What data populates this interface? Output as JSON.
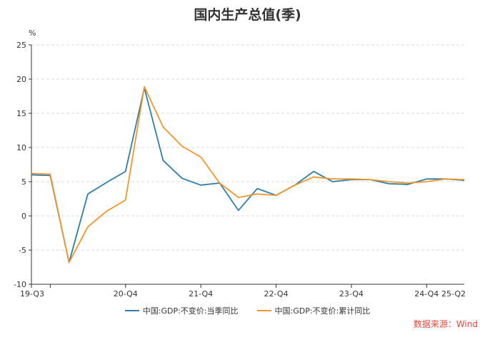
{
  "chart_data": {
    "type": "line",
    "title": "国内生产总值(季)",
    "y_unit": "%",
    "ylim": [
      -10,
      25
    ],
    "yticks": [
      -10,
      -5,
      0,
      5,
      10,
      15,
      20,
      25
    ],
    "grid": true,
    "legend_position": "bottom",
    "x": [
      "19-Q3",
      "19-Q4",
      "20-Q1",
      "20-Q2",
      "20-Q3",
      "20-Q4",
      "21-Q1",
      "21-Q2",
      "21-Q3",
      "21-Q4",
      "22-Q1",
      "22-Q2",
      "22-Q3",
      "22-Q4",
      "23-Q1",
      "23-Q2",
      "23-Q3",
      "23-Q4",
      "24-Q1",
      "24-Q2",
      "24-Q3",
      "24-Q4",
      "25-Q1",
      "25-Q2"
    ],
    "x_tick_labels": [
      "19-Q3",
      "20-Q4",
      "21-Q4",
      "22-Q4",
      "23-Q4",
      "24-Q4",
      "25-Q2"
    ],
    "series": [
      {
        "name": "中国:GDP:不变价:当季同比",
        "color": "#2e7ea6",
        "values": [
          6.0,
          5.9,
          -6.8,
          3.2,
          4.9,
          6.5,
          18.7,
          8.1,
          5.5,
          4.5,
          4.8,
          0.8,
          4.0,
          3.0,
          4.5,
          6.5,
          5.0,
          5.3,
          5.3,
          4.7,
          4.6,
          5.4,
          5.4,
          5.2
        ]
      },
      {
        "name": "中国:GDP:不变价:累计同比",
        "color": "#f0962c",
        "values": [
          6.2,
          6.1,
          -6.8,
          -1.6,
          0.7,
          2.3,
          18.9,
          13.0,
          10.2,
          8.6,
          4.8,
          2.7,
          3.2,
          3.0,
          4.5,
          5.7,
          5.4,
          5.4,
          5.3,
          5.0,
          4.8,
          5.0,
          5.4,
          5.3
        ]
      }
    ]
  },
  "source": "数据来源：Wind"
}
